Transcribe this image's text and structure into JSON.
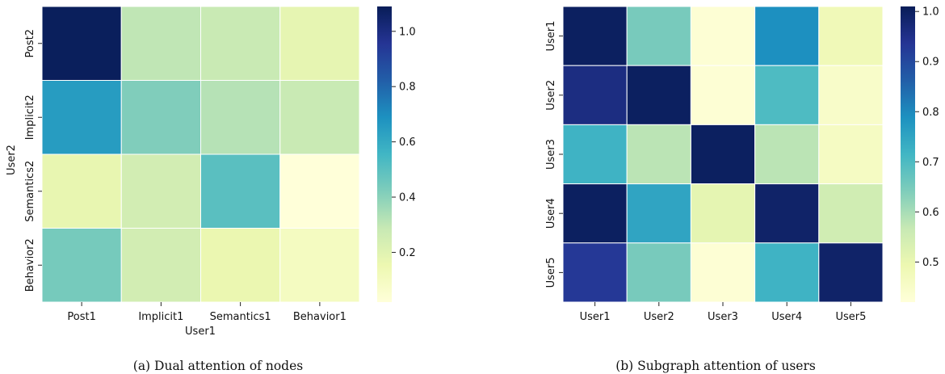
{
  "chart_data": [
    {
      "type": "heatmap",
      "caption": "(a)  Dual attention of nodes",
      "xlabel": "User1",
      "ylabel": "User2",
      "x_categories": [
        "Post1",
        "Implicit1",
        "Semantics1",
        "Behavior1"
      ],
      "y_categories": [
        "Post2",
        "Implicit2",
        "Semantics2",
        "Behavior2"
      ],
      "values": [
        [
          1.08,
          0.3,
          0.28,
          0.18
        ],
        [
          0.65,
          0.42,
          0.32,
          0.28
        ],
        [
          0.17,
          0.25,
          0.5,
          0.02
        ],
        [
          0.44,
          0.25,
          0.16,
          0.1
        ]
      ],
      "colorbar": {
        "min": 0.02,
        "max": 1.09,
        "ticks": [
          0.2,
          0.4,
          0.6,
          0.8,
          1.0
        ],
        "tick_labels": [
          "0.2",
          "0.4",
          "0.6",
          "0.8",
          "1.0"
        ]
      },
      "colormap": [
        "#ffffd9",
        "#edf8b1",
        "#c7e9b4",
        "#7fcdbb",
        "#41b6c4",
        "#1d91c0",
        "#225ea8",
        "#253494",
        "#081d58"
      ]
    },
    {
      "type": "heatmap",
      "caption": "(b)  Subgraph attention of users",
      "xlabel": "",
      "ylabel": "",
      "x_categories": [
        "User1",
        "User2",
        "User3",
        "User4",
        "User5"
      ],
      "y_categories": [
        "User1",
        "User2",
        "User3",
        "User4",
        "User5"
      ],
      "values": [
        [
          1.0,
          0.65,
          0.43,
          0.79,
          0.48
        ],
        [
          0.96,
          1.0,
          0.43,
          0.7,
          0.45
        ],
        [
          0.72,
          0.58,
          1.0,
          0.58,
          0.46
        ],
        [
          1.0,
          0.75,
          0.51,
          0.99,
          0.55
        ],
        [
          0.93,
          0.65,
          0.43,
          0.72,
          0.99
        ]
      ],
      "colorbar": {
        "min": 0.42,
        "max": 1.01,
        "ticks": [
          0.5,
          0.6,
          0.7,
          0.8,
          0.9,
          1.0
        ],
        "tick_labels": [
          "0.5",
          "0.6",
          "0.7",
          "0.8",
          "0.9",
          "1.0"
        ]
      },
      "colormap": [
        "#ffffd9",
        "#edf8b1",
        "#c7e9b4",
        "#7fcdbb",
        "#41b6c4",
        "#1d91c0",
        "#225ea8",
        "#253494",
        "#081d58"
      ]
    }
  ]
}
